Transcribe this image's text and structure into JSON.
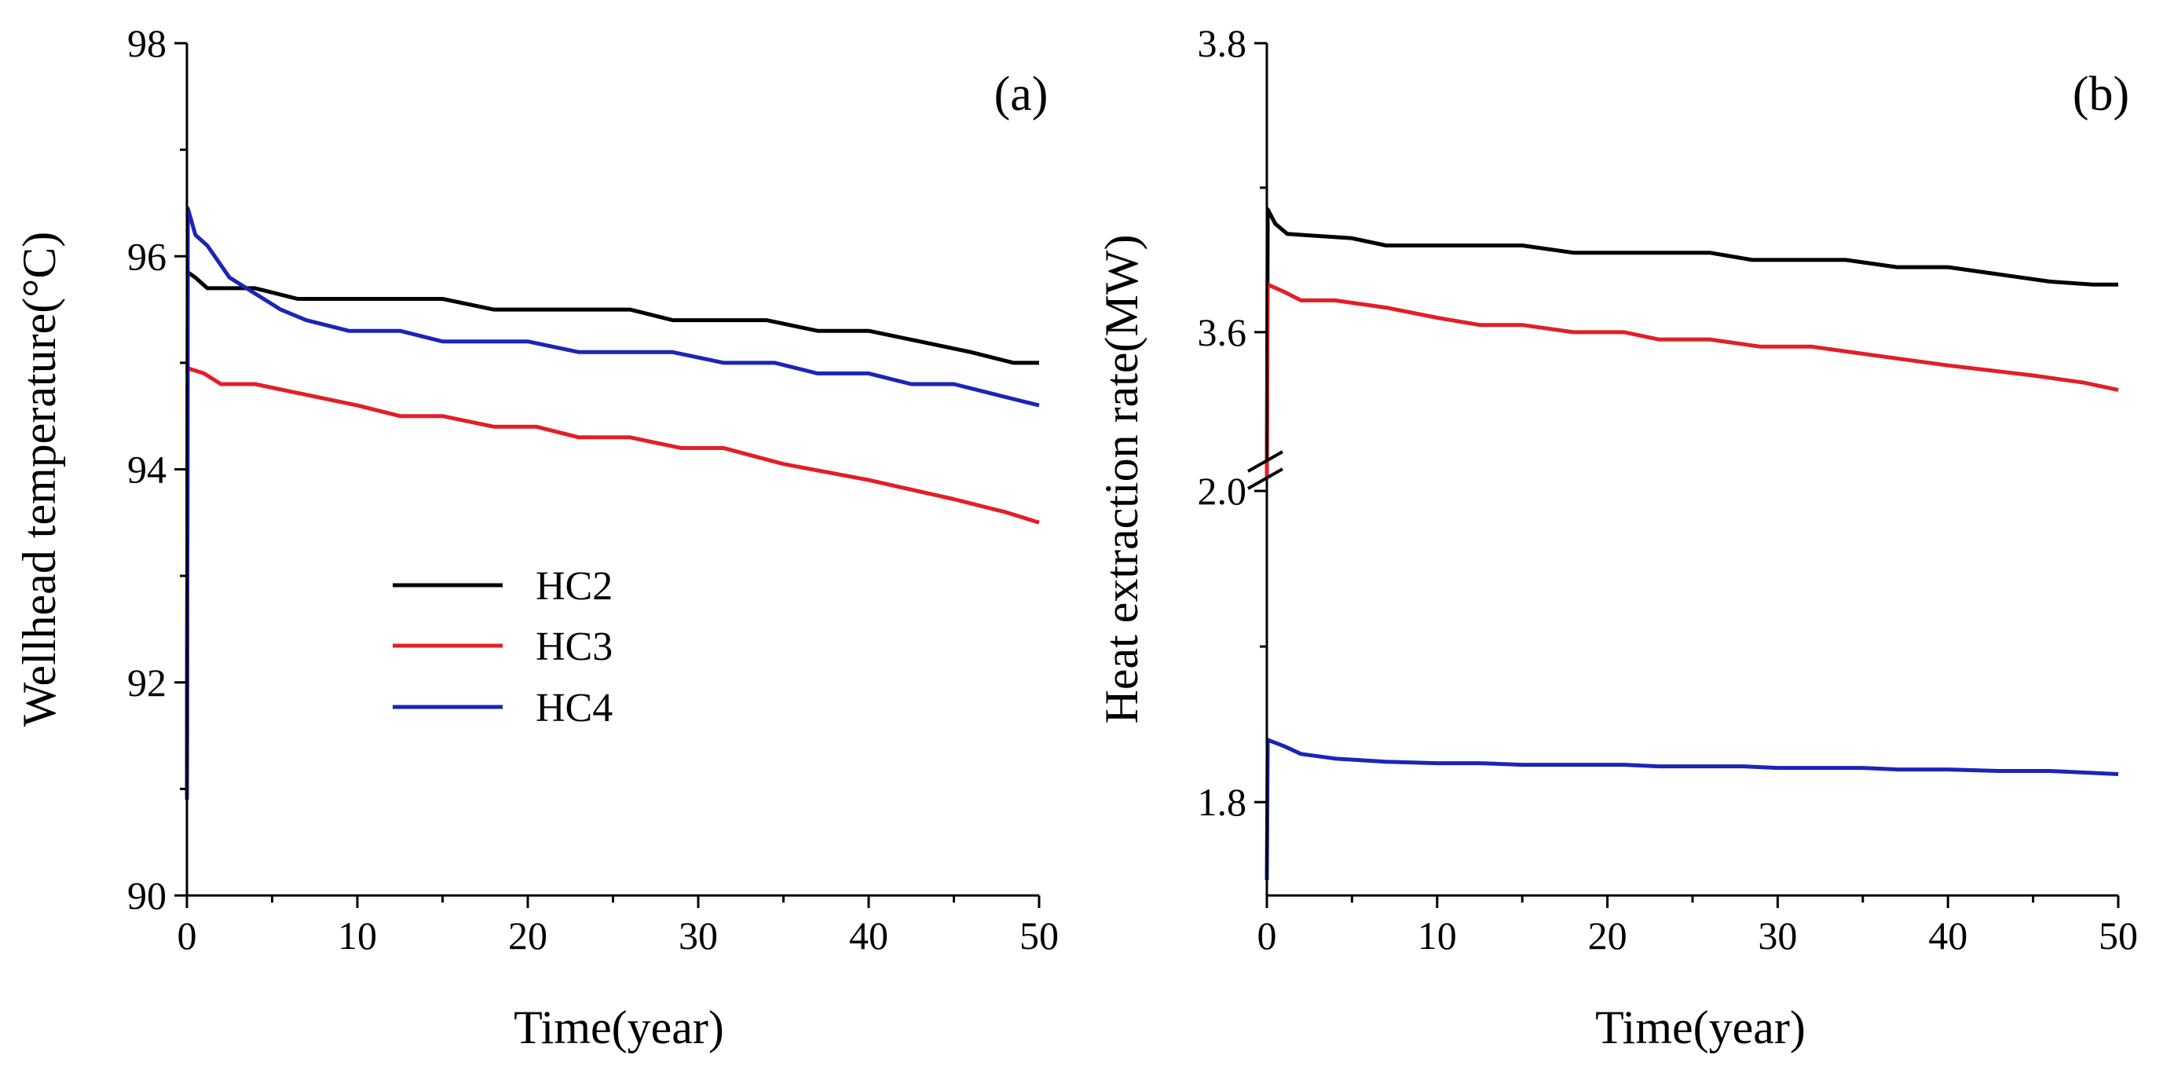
{
  "chart_data": [
    {
      "type": "line",
      "panel_label": "(a)",
      "xlabel": "Time(year)",
      "ylabel": "Wellhead temperature(°C)",
      "xlim": [
        0,
        50
      ],
      "ylim": [
        90,
        98
      ],
      "xticks": [
        0,
        10,
        20,
        30,
        40,
        50
      ],
      "yticks": [
        90,
        92,
        94,
        96,
        98
      ],
      "legend": {
        "placement": "center-left",
        "entries": [
          "HC2",
          "HC3",
          "HC4"
        ]
      },
      "series": [
        {
          "name": "HC2",
          "color": "#000000",
          "points": [
            [
              0,
              90.9
            ],
            [
              0.05,
              95.85
            ],
            [
              0.5,
              95.8
            ],
            [
              1.2,
              95.7
            ],
            [
              4,
              95.7
            ],
            [
              6.5,
              95.6
            ],
            [
              15,
              95.6
            ],
            [
              18,
              95.5
            ],
            [
              26,
              95.5
            ],
            [
              28.5,
              95.4
            ],
            [
              34,
              95.4
            ],
            [
              37,
              95.3
            ],
            [
              40,
              95.3
            ],
            [
              43,
              95.2
            ],
            [
              46,
              95.1
            ],
            [
              48.5,
              95.0
            ],
            [
              50,
              95.0
            ]
          ]
        },
        {
          "name": "HC3",
          "color": "#e21f26",
          "points": [
            [
              0,
              90.9
            ],
            [
              0.05,
              94.95
            ],
            [
              1,
              94.9
            ],
            [
              2,
              94.8
            ],
            [
              4,
              94.8
            ],
            [
              7,
              94.7
            ],
            [
              10,
              94.6
            ],
            [
              12.5,
              94.5
            ],
            [
              15,
              94.5
            ],
            [
              18,
              94.4
            ],
            [
              20.5,
              94.4
            ],
            [
              23,
              94.3
            ],
            [
              26,
              94.3
            ],
            [
              29,
              94.2
            ],
            [
              31.5,
              94.2
            ],
            [
              35,
              94.05
            ],
            [
              40,
              93.9
            ],
            [
              45,
              93.72
            ],
            [
              48,
              93.6
            ],
            [
              50,
              93.5
            ]
          ]
        },
        {
          "name": "HC4",
          "color": "#1c24b8",
          "points": [
            [
              0,
              90.9
            ],
            [
              0.05,
              96.45
            ],
            [
              0.5,
              96.2
            ],
            [
              1.2,
              96.1
            ],
            [
              2.5,
              95.8
            ],
            [
              4,
              95.65
            ],
            [
              5.5,
              95.5
            ],
            [
              7,
              95.4
            ],
            [
              9.5,
              95.3
            ],
            [
              12.5,
              95.3
            ],
            [
              15,
              95.2
            ],
            [
              20,
              95.2
            ],
            [
              23,
              95.1
            ],
            [
              28.5,
              95.1
            ],
            [
              31.5,
              95.0
            ],
            [
              34.5,
              95.0
            ],
            [
              37,
              94.9
            ],
            [
              40,
              94.9
            ],
            [
              42.5,
              94.8
            ],
            [
              45,
              94.8
            ],
            [
              47.5,
              94.7
            ],
            [
              50,
              94.6
            ]
          ]
        }
      ]
    },
    {
      "type": "line",
      "panel_label": "(b)",
      "xlabel": "Time(year)",
      "ylabel": "Heat extraction rate(MW)",
      "xlim": [
        0,
        50
      ],
      "ylim": [
        1.74,
        3.8
      ],
      "axis_break": {
        "between": [
          2.0,
          3.52
        ],
        "marker": "//"
      },
      "xticks": [
        0,
        10,
        20,
        30,
        40,
        50
      ],
      "yticks": [
        1.8,
        2.0,
        3.6,
        3.8
      ],
      "series": [
        {
          "name": "HC2",
          "color": "#000000",
          "points": [
            [
              0,
              3.5
            ],
            [
              0.05,
              3.685
            ],
            [
              0.5,
              3.675
            ],
            [
              1.2,
              3.668
            ],
            [
              5,
              3.665
            ],
            [
              7,
              3.66
            ],
            [
              15,
              3.66
            ],
            [
              18,
              3.655
            ],
            [
              26,
              3.655
            ],
            [
              28.5,
              3.65
            ],
            [
              34,
              3.65
            ],
            [
              37,
              3.645
            ],
            [
              40,
              3.645
            ],
            [
              43,
              3.64
            ],
            [
              46,
              3.635
            ],
            [
              48.5,
              3.633
            ],
            [
              50,
              3.633
            ]
          ]
        },
        {
          "name": "HC3",
          "color": "#e21f26",
          "points": [
            [
              0,
              3.5
            ],
            [
              0.05,
              3.633
            ],
            [
              1,
              3.628
            ],
            [
              2,
              3.622
            ],
            [
              4,
              3.622
            ],
            [
              7,
              3.617
            ],
            [
              10,
              3.61
            ],
            [
              12.5,
              3.605
            ],
            [
              15,
              3.605
            ],
            [
              18,
              3.6
            ],
            [
              21,
              3.6
            ],
            [
              23,
              3.595
            ],
            [
              26,
              3.595
            ],
            [
              29,
              3.59
            ],
            [
              32,
              3.59
            ],
            [
              35,
              3.585
            ],
            [
              40,
              3.577
            ],
            [
              45,
              3.57
            ],
            [
              48,
              3.565
            ],
            [
              50,
              3.56
            ]
          ]
        },
        {
          "name": "HC4",
          "color": "#1c24b8",
          "points": [
            [
              0,
              1.75
            ],
            [
              0.05,
              1.84
            ],
            [
              1,
              1.836
            ],
            [
              2,
              1.831
            ],
            [
              4,
              1.828
            ],
            [
              7,
              1.826
            ],
            [
              10,
              1.825
            ],
            [
              12.5,
              1.825
            ],
            [
              15,
              1.824
            ],
            [
              21,
              1.824
            ],
            [
              23,
              1.823
            ],
            [
              28,
              1.823
            ],
            [
              30,
              1.822
            ],
            [
              35,
              1.822
            ],
            [
              37,
              1.821
            ],
            [
              40,
              1.821
            ],
            [
              43,
              1.82
            ],
            [
              46,
              1.82
            ],
            [
              48,
              1.819
            ],
            [
              50,
              1.818
            ]
          ]
        }
      ]
    }
  ]
}
